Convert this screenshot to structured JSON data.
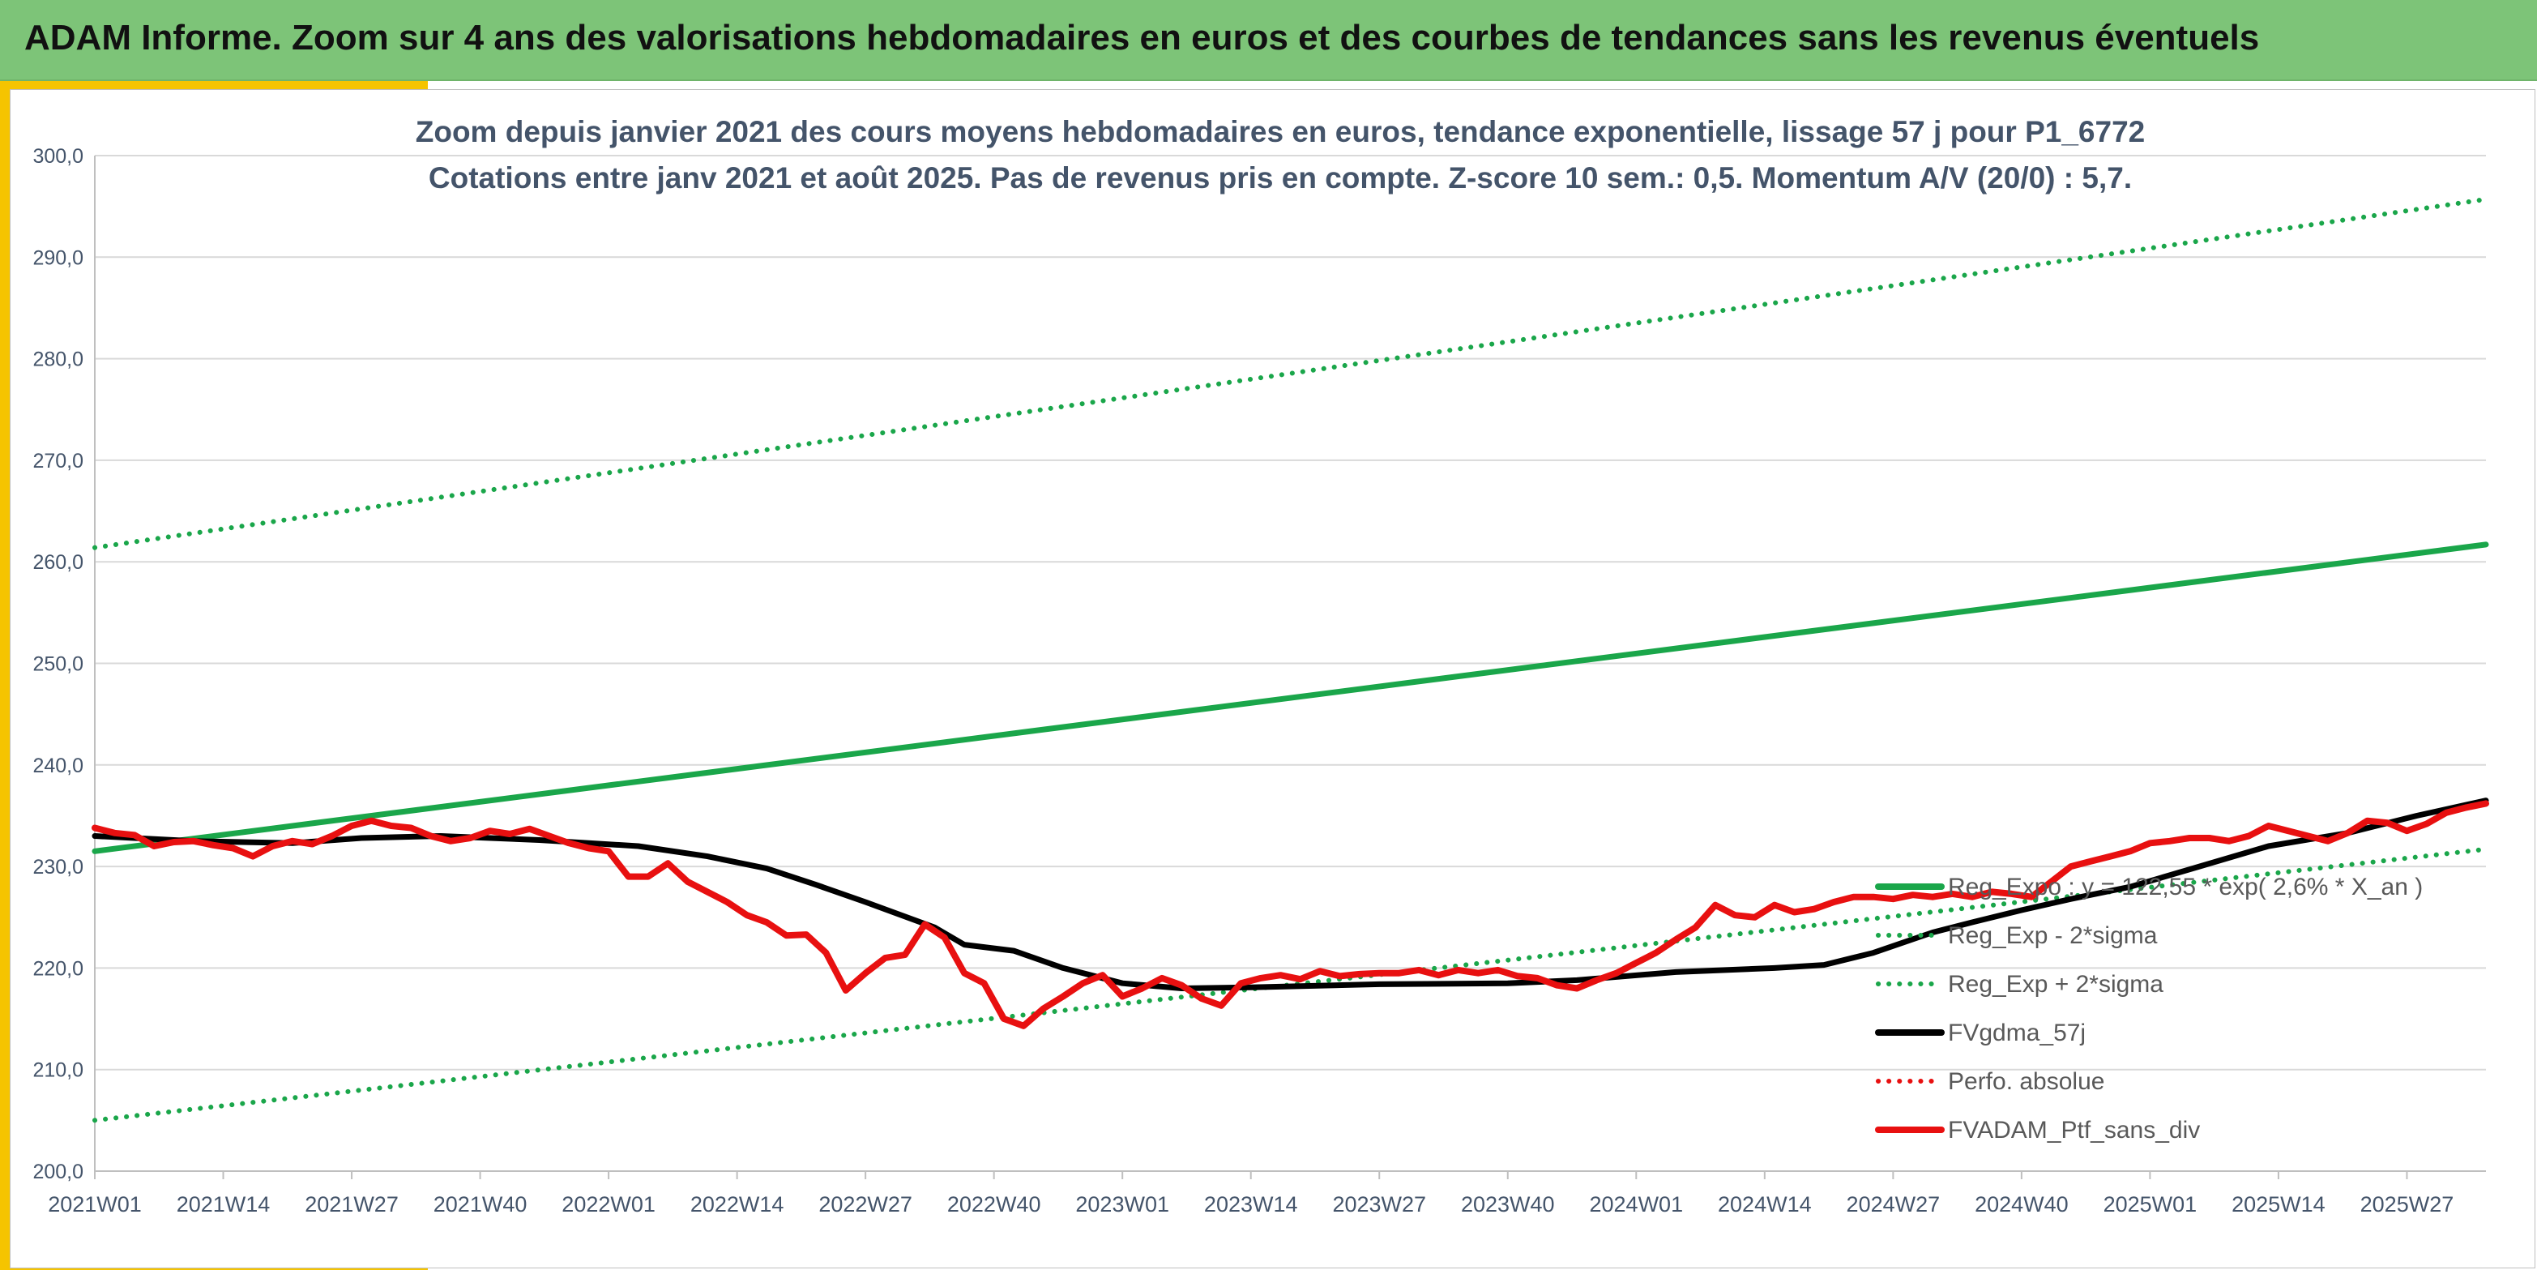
{
  "banner": {
    "title": "ADAM Informe. Zoom sur 4 ans des valorisations hebdomadaires en euros et des courbes de tendances sans les revenus éventuels"
  },
  "colors": {
    "banner": "#7dc478",
    "accent": "#f5c400",
    "trend": "#1aa64a",
    "smooth": "#000000",
    "portfolio": "#e81010",
    "perf": "#e81010"
  },
  "chart_data": {
    "type": "line",
    "title": "Zoom depuis janvier 2021 des cours moyens hebdomadaires en euros, tendance exponentielle, lissage 57 j pour P1_6772",
    "subtitle": "Cotations entre janv 2021 et août 2025. Pas de revenus pris en compte. Z-score 10 sem.: 0,5. Momentum A/V (20/0) : 5,7.",
    "x_tick_labels": [
      "2021W01",
      "2021W14",
      "2021W27",
      "2021W40",
      "2022W01",
      "2022W14",
      "2022W27",
      "2022W40",
      "2023W01",
      "2023W14",
      "2023W27",
      "2023W40",
      "2024W01",
      "2024W14",
      "2024W27",
      "2024W40",
      "2025W01",
      "2025W14",
      "2025W27"
    ],
    "x_range_weeks": [
      0,
      242
    ],
    "ylim": [
      200,
      300
    ],
    "y_ticks": [
      200,
      210,
      220,
      230,
      240,
      250,
      260,
      270,
      280,
      290,
      300
    ],
    "y_tick_labels": [
      "200,0",
      "210,0",
      "220,0",
      "230,0",
      "240,0",
      "250,0",
      "260,0",
      "270,0",
      "280,0",
      "290,0",
      "300,0"
    ],
    "grid": true,
    "legend_position": "right",
    "series": [
      {
        "name": "Reg_Expo : y = 122,55 * exp( 2,6% * X_an )",
        "style": "solid",
        "color": "#1aa64a",
        "x": [
          0,
          242
        ],
        "y": [
          231.5,
          261.7
        ]
      },
      {
        "name": "Reg_Exp - 2*sigma",
        "style": "dotted",
        "color": "#1aa64a",
        "x": [
          0,
          242
        ],
        "y": [
          205.0,
          231.7
        ]
      },
      {
        "name": "Reg_Exp + 2*sigma",
        "style": "dotted",
        "color": "#1aa64a",
        "x": [
          0,
          242
        ],
        "y": [
          261.4,
          295.7
        ]
      },
      {
        "name": "FVgdma_57j",
        "style": "solid",
        "color": "#000000",
        "x": [
          0,
          10,
          20,
          27,
          35,
          45,
          55,
          62,
          68,
          73,
          78,
          85,
          88,
          93,
          98,
          104,
          110,
          117,
          130,
          143,
          150,
          160,
          170,
          175,
          180,
          186,
          190,
          195,
          200,
          206,
          213,
          220,
          228,
          235,
          242
        ],
        "y": [
          233.0,
          232.5,
          232.3,
          232.8,
          233.0,
          232.6,
          232.0,
          231.0,
          229.8,
          228.2,
          226.5,
          224.0,
          222.3,
          221.7,
          220.0,
          218.5,
          218.0,
          218.1,
          218.4,
          218.5,
          218.8,
          219.6,
          220.0,
          220.3,
          221.5,
          223.5,
          224.5,
          225.7,
          226.8,
          228.0,
          230.0,
          232.0,
          233.3,
          235.0,
          236.5
        ]
      },
      {
        "name": "Perfo. absolue",
        "style": "dotted",
        "color": "#e81010",
        "x": [],
        "y": []
      },
      {
        "name": "FVADAM_Ptf_sans_div",
        "style": "solid",
        "color": "#e81010",
        "x": [
          0,
          2,
          4,
          6,
          8,
          10,
          12,
          14,
          16,
          18,
          20,
          22,
          24,
          26,
          28,
          30,
          32,
          34,
          36,
          38,
          40,
          42,
          44,
          46,
          48,
          50,
          52,
          54,
          56,
          58,
          60,
          62,
          64,
          66,
          68,
          70,
          72,
          74,
          76,
          78,
          80,
          82,
          84,
          86,
          88,
          90,
          92,
          94,
          96,
          98,
          100,
          102,
          104,
          106,
          108,
          110,
          112,
          114,
          116,
          118,
          120,
          122,
          124,
          126,
          128,
          130,
          132,
          134,
          136,
          138,
          140,
          142,
          144,
          146,
          148,
          150,
          152,
          154,
          156,
          158,
          160,
          162,
          164,
          166,
          168,
          170,
          172,
          174,
          176,
          178,
          180,
          182,
          184,
          186,
          188,
          190,
          192,
          194,
          196,
          198,
          200,
          202,
          204,
          206,
          208,
          210,
          212,
          214,
          216,
          218,
          220,
          222,
          224,
          226,
          228,
          230,
          232,
          234,
          236,
          238,
          240,
          242
        ],
        "y": [
          233.8,
          233.3,
          233.1,
          232.0,
          232.4,
          232.5,
          232.1,
          231.8,
          231.0,
          232.0,
          232.5,
          232.2,
          233.0,
          234.0,
          234.5,
          234.0,
          233.8,
          233.0,
          232.5,
          232.8,
          233.5,
          233.2,
          233.7,
          233.0,
          232.3,
          231.8,
          231.5,
          229.0,
          229.0,
          230.3,
          228.5,
          227.5,
          226.5,
          225.2,
          224.5,
          223.2,
          223.3,
          221.5,
          217.8,
          219.5,
          221.0,
          221.3,
          224.3,
          223.0,
          219.5,
          218.5,
          215.0,
          214.3,
          216.0,
          217.2,
          218.5,
          219.3,
          217.2,
          218.0,
          219.0,
          218.3,
          217.0,
          216.3,
          218.5,
          219.0,
          219.3,
          218.9,
          219.7,
          219.2,
          219.4,
          219.5,
          219.5,
          219.8,
          219.3,
          219.8,
          219.5,
          219.8,
          219.2,
          219.0,
          218.3,
          218.0,
          218.8,
          219.5,
          220.5,
          221.5,
          222.8,
          224.0,
          226.2,
          225.2,
          225.0,
          226.2,
          225.5,
          225.8,
          226.5,
          227.0,
          227.0,
          226.8,
          227.2,
          227.0,
          227.3,
          227.0,
          227.5,
          227.3,
          227.0,
          228.5,
          230.0,
          230.5,
          231.0,
          231.5,
          232.3,
          232.5,
          232.8,
          232.8,
          232.5,
          233.0,
          234.0,
          233.5,
          233.0,
          232.5,
          233.3,
          234.5,
          234.3,
          233.5,
          234.2,
          235.3,
          235.8,
          236.2
        ]
      }
    ]
  }
}
